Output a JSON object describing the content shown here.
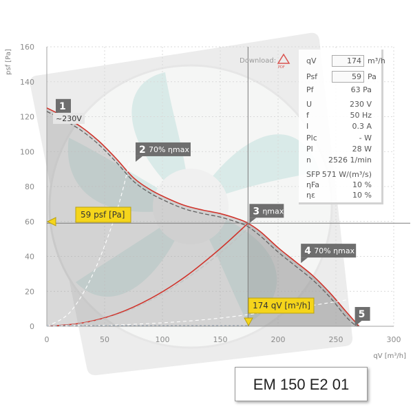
{
  "chart_data": {
    "type": "line",
    "xlabel": "qV [m³/h]",
    "ylabel": "psf [Pa]",
    "xlim": [
      0,
      300
    ],
    "ylim": [
      0,
      160
    ],
    "x_ticks": [
      0,
      50,
      100,
      150,
      200,
      250,
      300
    ],
    "y_ticks": [
      0,
      20,
      40,
      60,
      80,
      100,
      120,
      140,
      160
    ],
    "grid": true,
    "series": [
      {
        "role": "fan-curve",
        "color": "#d0342c",
        "x": [
          0,
          15,
          30,
          45,
          60,
          75,
          90,
          105,
          120,
          135,
          150,
          165,
          174,
          185,
          200,
          215,
          230,
          245,
          258,
          266,
          270
        ],
        "y": [
          125,
          120,
          114,
          106,
          96,
          85,
          78,
          73,
          69,
          66.5,
          64.5,
          61.5,
          59,
          54,
          45,
          37,
          29,
          19,
          9,
          3,
          0
        ]
      },
      {
        "role": "fan-curve-dashed",
        "color": "#606060",
        "x": [
          0,
          15,
          30,
          45,
          60,
          75,
          90,
          105,
          120,
          135,
          150,
          165,
          174,
          185,
          200,
          215,
          230,
          245,
          258,
          266,
          270
        ],
        "y": [
          123,
          118,
          112,
          104,
          94,
          83,
          76,
          71,
          67,
          64.5,
          62.5,
          59.5,
          57,
          51.5,
          42.5,
          34.5,
          26.5,
          16.5,
          6,
          1,
          0
        ]
      },
      {
        "role": "system-curve",
        "color": "#d0342c",
        "x": [
          0,
          30,
          60,
          90,
          120,
          150,
          174
        ],
        "y": [
          0,
          1.8,
          7,
          16,
          28.5,
          44.5,
          59
        ]
      },
      {
        "role": "system-curve-dashed",
        "color": "#c2c2c2",
        "x": [
          0,
          30,
          60,
          90,
          120,
          150,
          174
        ],
        "y": [
          0,
          1.6,
          6.5,
          15,
          27,
          42,
          56
        ]
      },
      {
        "role": "efficiency-line-70-left",
        "color": "#ffffff",
        "x": [
          0,
          20,
          40,
          60,
          72
        ],
        "y": [
          0,
          8,
          30,
          65,
          95
        ]
      },
      {
        "role": "efficiency-line-70-right",
        "color": "#ffffff",
        "x": [
          0,
          70,
          140,
          210,
          268
        ],
        "y": [
          0,
          1,
          4,
          10,
          16
        ]
      }
    ],
    "operating_point": {
      "x": 174,
      "y": 59
    },
    "markers": [
      {
        "num": "1",
        "label": "",
        "x": 0,
        "y": 125
      },
      {
        "num": "2",
        "label": "70% ηmax",
        "x": 72,
        "y": 95
      },
      {
        "num": "3",
        "label": "ηmax",
        "x": 174,
        "y": 59
      },
      {
        "num": "4",
        "label": "70% ηmax",
        "x": 215,
        "y": 37
      },
      {
        "num": "5",
        "label": "",
        "x": 270,
        "y": 0
      }
    ],
    "annotations": {
      "voltage": "~230V",
      "y_callout": "59 psf [Pa]",
      "x_callout": "174 qV [m³/h]"
    }
  },
  "colors": {
    "curve_red": "#d0342c",
    "marker_gray": "#6e6e6e",
    "callout_yellow": "#f5d51b",
    "area_gray": "#d6d6d6",
    "area_bright": "#bebebe",
    "fan_teal": "#d2e6e3"
  },
  "download_label": "Download:",
  "download_icon": "pdf-icon",
  "specs": {
    "qv": {
      "name": "qV",
      "value": "174",
      "unit": "m³/h"
    },
    "psf": {
      "name": "Psf",
      "value": "59",
      "unit": "Pa"
    },
    "pf": {
      "name": "Pf",
      "value": "63 Pa"
    },
    "u": {
      "name": "U",
      "value": "230 V"
    },
    "f": {
      "name": "f",
      "value": "50 Hz"
    },
    "i": {
      "name": "I",
      "value": "0.3 A"
    },
    "plc": {
      "name": "Plc",
      "value": "- W"
    },
    "pl": {
      "name": "Pl",
      "value": "28 W"
    },
    "n": {
      "name": "n",
      "value": "2526 1/min"
    },
    "sfp": {
      "name": "SFP",
      "value": "571 W/(m³/s)"
    },
    "etafa": {
      "name": "ηFa",
      "value": "10 %"
    },
    "etae": {
      "name": "ηε",
      "value": "10 %"
    }
  },
  "model": "EM 150 E2 01"
}
